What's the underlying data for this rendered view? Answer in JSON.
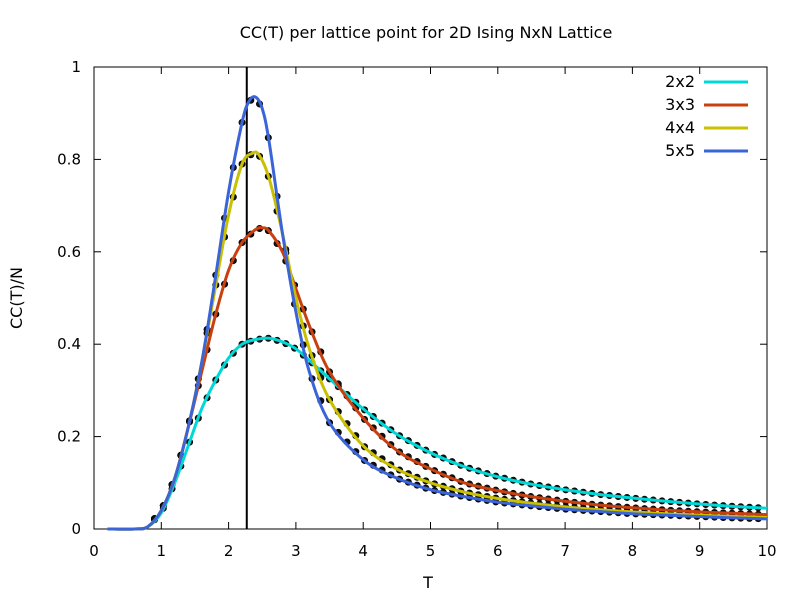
{
  "chart_data": {
    "type": "line",
    "title": "CC(T) per lattice point for 2D Ising NxN Lattice",
    "xlabel": "T",
    "ylabel": "CC(T)/N",
    "xlim": [
      0,
      10
    ],
    "ylim": [
      0,
      1
    ],
    "xticks": [
      "0",
      "1",
      "2",
      "3",
      "4",
      "5",
      "6",
      "7",
      "8",
      "9",
      "10"
    ],
    "yticks": [
      "0",
      "0.2",
      "0.4",
      "0.6",
      "0.8",
      "1"
    ],
    "legend_position": "top-right",
    "vertical_line_x": 2.27,
    "series": [
      {
        "name": "2x2",
        "color": "#00d8d8",
        "x": [
          0.2,
          0.6,
          0.8,
          1.0,
          1.2,
          1.4,
          1.6,
          1.8,
          2.0,
          2.2,
          2.4,
          2.6,
          2.8,
          3.0,
          3.2,
          3.5,
          4.0,
          4.5,
          5.0,
          5.5,
          6.0,
          6.5,
          7.0,
          7.5,
          8.0,
          8.5,
          9.0,
          9.5,
          10.0
        ],
        "y": [
          0,
          0.0,
          0.005,
          0.035,
          0.1,
          0.18,
          0.26,
          0.32,
          0.37,
          0.4,
          0.41,
          0.413,
          0.405,
          0.39,
          0.365,
          0.325,
          0.26,
          0.205,
          0.165,
          0.135,
          0.113,
          0.097,
          0.085,
          0.075,
          0.067,
          0.06,
          0.054,
          0.049,
          0.045
        ]
      },
      {
        "name": "3x3",
        "color": "#c84010",
        "x": [
          0.2,
          0.6,
          0.8,
          1.0,
          1.2,
          1.4,
          1.6,
          1.8,
          2.0,
          2.2,
          2.4,
          2.5,
          2.6,
          2.8,
          3.0,
          3.2,
          3.5,
          4.0,
          4.5,
          5.0,
          5.5,
          6.0,
          6.5,
          7.0,
          7.5,
          8.0,
          8.5,
          9.0,
          9.5,
          10.0
        ],
        "y": [
          0,
          0.0,
          0.005,
          0.04,
          0.11,
          0.22,
          0.34,
          0.46,
          0.56,
          0.62,
          0.648,
          0.652,
          0.645,
          0.6,
          0.52,
          0.44,
          0.34,
          0.24,
          0.17,
          0.13,
          0.1,
          0.083,
          0.07,
          0.06,
          0.052,
          0.046,
          0.041,
          0.037,
          0.034,
          0.031
        ]
      },
      {
        "name": "4x4",
        "color": "#c8c000",
        "x": [
          0.2,
          0.6,
          0.8,
          1.0,
          1.2,
          1.4,
          1.6,
          1.8,
          2.0,
          2.2,
          2.35,
          2.45,
          2.6,
          2.8,
          3.0,
          3.2,
          3.5,
          4.0,
          4.5,
          5.0,
          5.5,
          6.0,
          6.5,
          7.0,
          7.5,
          8.0,
          8.5,
          9.0,
          9.5,
          10.0
        ],
        "y": [
          0,
          0.0,
          0.005,
          0.04,
          0.11,
          0.22,
          0.36,
          0.52,
          0.68,
          0.79,
          0.813,
          0.81,
          0.76,
          0.64,
          0.5,
          0.39,
          0.28,
          0.18,
          0.13,
          0.1,
          0.08,
          0.066,
          0.056,
          0.048,
          0.042,
          0.037,
          0.033,
          0.03,
          0.027,
          0.025
        ]
      },
      {
        "name": "5x5",
        "color": "#3a64d8",
        "x": [
          0.2,
          0.6,
          0.8,
          1.0,
          1.2,
          1.4,
          1.6,
          1.8,
          2.0,
          2.2,
          2.3,
          2.4,
          2.5,
          2.6,
          2.8,
          3.0,
          3.2,
          3.5,
          4.0,
          4.5,
          5.0,
          5.5,
          6.0,
          6.5,
          7.0,
          7.5,
          8.0,
          8.5,
          9.0,
          9.5,
          10.0
        ],
        "y": [
          0,
          0.0,
          0.005,
          0.04,
          0.11,
          0.22,
          0.36,
          0.54,
          0.73,
          0.88,
          0.925,
          0.935,
          0.91,
          0.84,
          0.64,
          0.47,
          0.34,
          0.23,
          0.15,
          0.11,
          0.085,
          0.07,
          0.058,
          0.05,
          0.043,
          0.038,
          0.033,
          0.03,
          0.027,
          0.024,
          0.022
        ]
      }
    ]
  }
}
